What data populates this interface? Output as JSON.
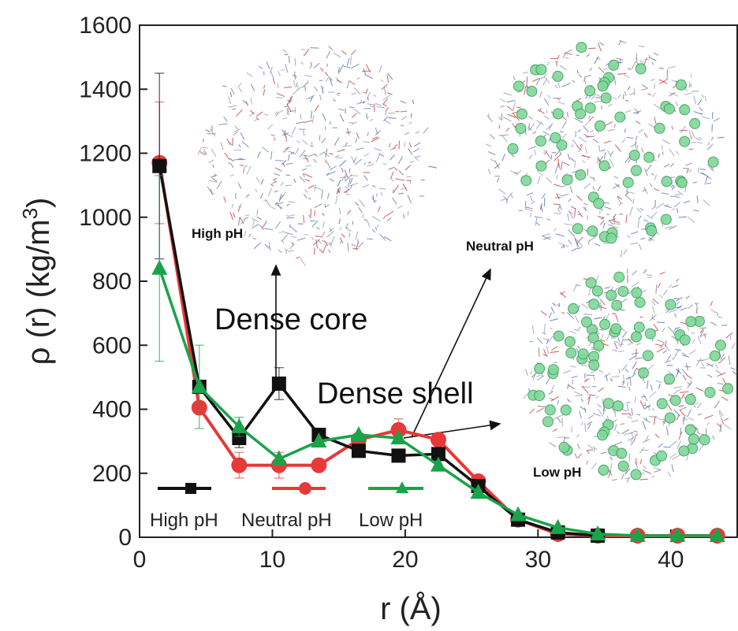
{
  "chart_data": {
    "type": "line",
    "title": "",
    "xlabel": "r (Å)",
    "ylabel_parts": {
      "main": "ρ (r) (kg/m",
      "sup": "3",
      "close": ")"
    },
    "xlim": [
      0,
      45
    ],
    "ylim": [
      0,
      1600
    ],
    "xticks": [
      "0",
      "10",
      "20",
      "30",
      "40"
    ],
    "yticks": [
      "0",
      "200",
      "400",
      "600",
      "800",
      "1000",
      "1200",
      "1400",
      "1600"
    ],
    "grid": false,
    "legend_position": "bottom-left",
    "series": [
      {
        "name": "High pH",
        "color": "#111111",
        "marker": "square",
        "x": [
          1.5,
          4.5,
          7.5,
          10.5,
          13.5,
          16.5,
          19.5,
          22.5,
          25.5,
          28.5,
          31.5,
          34.5
        ],
        "y": [
          1160,
          470,
          310,
          480,
          320,
          270,
          255,
          260,
          160,
          55,
          15,
          5
        ],
        "err": [
          290,
          0,
          30,
          50,
          0,
          0,
          0,
          0,
          0,
          0,
          0,
          0
        ]
      },
      {
        "name": "Neutral pH",
        "color": "#e83838",
        "marker": "circle",
        "x": [
          1.5,
          4.5,
          7.5,
          10.5,
          13.5,
          16.5,
          19.5,
          22.5,
          25.5,
          28.5,
          31.5,
          34.5,
          37.5,
          40.5,
          43.5
        ],
        "y": [
          1170,
          405,
          225,
          225,
          225,
          305,
          335,
          305,
          175,
          55,
          10,
          5,
          5,
          5,
          5
        ],
        "err": [
          190,
          0,
          40,
          40,
          0,
          0,
          35,
          0,
          0,
          0,
          0,
          0,
          0,
          0,
          0
        ]
      },
      {
        "name": "Low pH",
        "color": "#1aa34a",
        "marker": "triangle",
        "x": [
          1.5,
          4.5,
          7.5,
          10.5,
          13.5,
          16.5,
          19.5,
          22.5,
          25.5,
          28.5,
          31.5,
          34.5,
          37.5,
          40.5,
          43.5
        ],
        "y": [
          840,
          470,
          345,
          245,
          300,
          320,
          310,
          225,
          140,
          70,
          30,
          10,
          5,
          5,
          5
        ],
        "err": [
          290,
          130,
          30,
          0,
          0,
          0,
          0,
          0,
          0,
          0,
          0,
          0,
          0,
          0,
          0
        ]
      }
    ],
    "annotations": {
      "dense_core": "Dense core",
      "dense_shell": "Dense shell",
      "high_ph": "High pH",
      "neutral_ph": "Neutral pH",
      "low_ph": "Low pH"
    }
  }
}
